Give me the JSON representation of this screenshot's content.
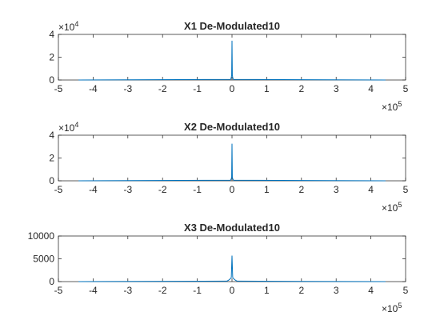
{
  "chart_data": [
    {
      "type": "line",
      "title": "X1 De-Modulated10",
      "xlabel": "",
      "ylabel": "",
      "xlim": [
        -5,
        5
      ],
      "ylim": [
        0,
        4
      ],
      "xticks": [
        "-5",
        "-4",
        "-3",
        "-2",
        "-1",
        "0",
        "1",
        "2",
        "3",
        "4",
        "5"
      ],
      "yticks": [
        "0",
        "2",
        "4"
      ],
      "y_multiplier": {
        "base": "×10",
        "exp": "4"
      },
      "x_multiplier": {
        "base": "×10",
        "exp": "5"
      },
      "color": "#0072BD",
      "x": [
        -4.42,
        -0.05,
        -0.03,
        -0.02,
        -0.01,
        0,
        0.01,
        0.02,
        0.03,
        0.05,
        4.42
      ],
      "y": [
        0.0,
        0.05,
        0.1,
        0.25,
        0.4,
        3.45,
        0.4,
        0.25,
        0.1,
        0.05,
        0.0
      ]
    },
    {
      "type": "line",
      "title": "X2 De-Modulated10",
      "xlabel": "",
      "ylabel": "",
      "xlim": [
        -5,
        5
      ],
      "ylim": [
        0,
        4
      ],
      "xticks": [
        "-5",
        "-4",
        "-3",
        "-2",
        "-1",
        "0",
        "1",
        "2",
        "3",
        "4",
        "5"
      ],
      "yticks": [
        "0",
        "2",
        "4"
      ],
      "y_multiplier": {
        "base": "×10",
        "exp": "4"
      },
      "x_multiplier": {
        "base": "×10",
        "exp": "5"
      },
      "color": "#0072BD",
      "x": [
        -4.42,
        -0.05,
        -0.03,
        -0.02,
        -0.01,
        0,
        0.01,
        0.02,
        0.03,
        0.05,
        4.42
      ],
      "y": [
        0.0,
        0.05,
        0.1,
        0.2,
        0.35,
        3.25,
        0.35,
        0.2,
        0.1,
        0.05,
        0.0
      ]
    },
    {
      "type": "line",
      "title": "X3 De-Modulated10",
      "xlabel": "",
      "ylabel": "",
      "xlim": [
        -5,
        5
      ],
      "ylim": [
        0,
        10000
      ],
      "xticks": [
        "-5",
        "-4",
        "-3",
        "-2",
        "-1",
        "0",
        "1",
        "2",
        "3",
        "4",
        "5"
      ],
      "yticks": [
        "0",
        "5000",
        "10000"
      ],
      "x_multiplier": {
        "base": "×10",
        "exp": "5"
      },
      "color": "#0072BD",
      "x": [
        -4.42,
        -0.15,
        -0.1,
        -0.05,
        -0.02,
        0,
        0.02,
        0.05,
        0.1,
        0.15,
        4.42
      ],
      "y": [
        0,
        100,
        300,
        600,
        900,
        5700,
        900,
        600,
        300,
        100,
        0
      ]
    }
  ]
}
